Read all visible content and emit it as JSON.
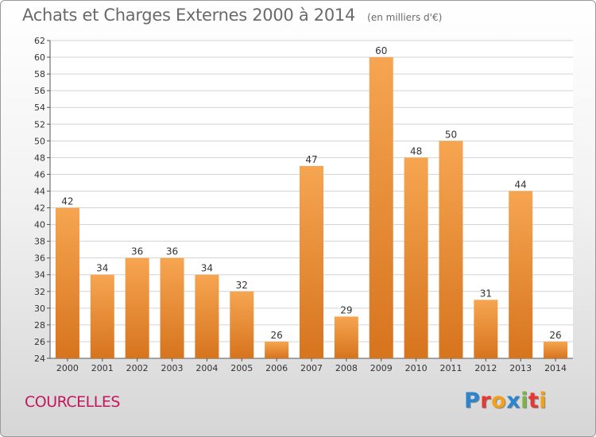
{
  "title": "Achats et Charges Externes 2000 à 2014",
  "unit": "(en milliers d'€)",
  "commune": "COURCELLES",
  "logo": {
    "letters": [
      "P",
      "r",
      "o",
      "x",
      "i",
      "t",
      "i"
    ],
    "colors": [
      "#2a84d0",
      "#e53935",
      "#f2a21a",
      "#2a84d0",
      "#7cb342",
      "#e53935",
      "#f2a21a"
    ]
  },
  "colors": {
    "bar_top": "#f6a551",
    "bar_bottom": "#d7741e",
    "commune": "#c2185b"
  },
  "chart_data": {
    "type": "bar",
    "title": "Achats et Charges Externes 2000 à 2014",
    "subtitle": "(en milliers d'€)",
    "categories": [
      "2000",
      "2001",
      "2002",
      "2003",
      "2004",
      "2005",
      "2006",
      "2007",
      "2008",
      "2009",
      "2010",
      "2011",
      "2012",
      "2013",
      "2014"
    ],
    "values": [
      42,
      34,
      36,
      36,
      34,
      32,
      26,
      47,
      29,
      60,
      48,
      50,
      31,
      44,
      26
    ],
    "ylim": [
      24,
      62
    ],
    "yticks": [
      24,
      26,
      28,
      30,
      32,
      34,
      36,
      38,
      40,
      42,
      44,
      46,
      48,
      50,
      52,
      54,
      56,
      58,
      60,
      62
    ],
    "grid": true,
    "xlabel": "",
    "ylabel": ""
  }
}
